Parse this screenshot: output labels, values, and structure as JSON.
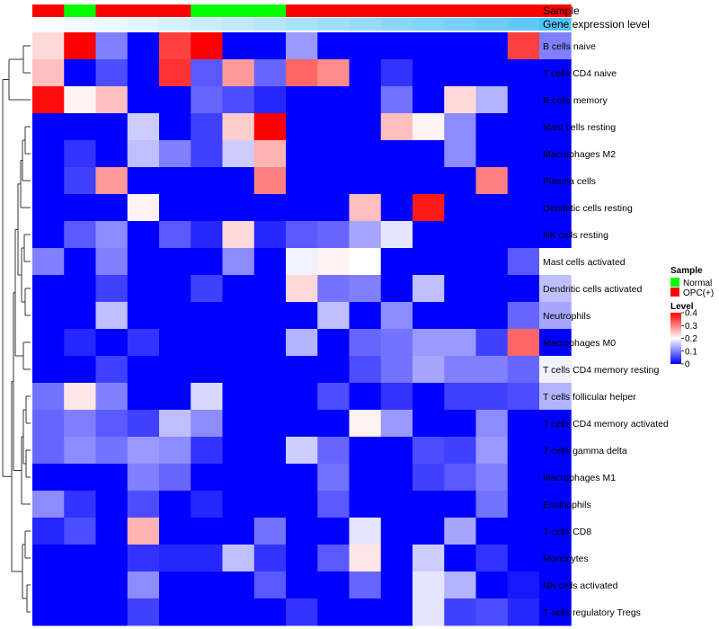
{
  "chart_data": {
    "type": "heatmap",
    "annotation_labels": {
      "sample": "Sample",
      "gene_expression": "Gene expression level"
    },
    "columns": 17,
    "sample_groups": [
      "OPC(+)",
      "Normal",
      "OPC(+)",
      "OPC(+)",
      "OPC(+)",
      "Normal",
      "Normal",
      "Normal",
      "OPC(+)",
      "OPC(+)",
      "OPC(+)",
      "OPC(+)",
      "OPC(+)",
      "OPC(+)",
      "OPC(+)",
      "OPC(+)",
      "OPC(+)"
    ],
    "gene_expression_level": [
      0.0,
      0.06,
      0.12,
      0.18,
      0.24,
      0.3,
      0.36,
      0.42,
      0.48,
      0.54,
      0.6,
      0.66,
      0.72,
      0.78,
      0.84,
      0.9,
      1.0
    ],
    "rows": [
      "B cells naive",
      "T cells CD4 naive",
      "B cells memory",
      "Mast cells resting",
      "Macrophages M2",
      "Plasma cells",
      "Dendritic cells resting",
      "NK cells resting",
      "Mast cells activated",
      "Dendritic cells activated",
      "Neutrophils",
      "Macrophages M0",
      "T cells CD4 memory resting",
      "T cells follicular helper",
      "T cells CD4 memory activated",
      "T cells gamma delta",
      "Macrophages M1",
      "Eosinophils",
      "T cells CD8",
      "Monocytes",
      "NK cells activated",
      "T cells regulatory  Tregs"
    ],
    "values": [
      [
        0.23,
        0.4,
        0.1,
        0,
        0.35,
        0.4,
        0,
        0,
        0.12,
        0,
        0,
        0,
        0,
        0,
        0,
        0.35,
        0.1
      ],
      [
        0.25,
        0,
        0.06,
        0,
        0.36,
        0.07,
        0.28,
        0.08,
        0.32,
        0.29,
        0,
        0.04,
        0,
        0,
        0,
        0,
        0
      ],
      [
        0.39,
        0.21,
        0.25,
        0,
        0,
        0.08,
        0.06,
        0.03,
        0,
        0,
        0,
        0.09,
        0,
        0.23,
        0.14,
        0,
        0
      ],
      [
        0,
        0,
        0,
        0.16,
        0,
        0.05,
        0.24,
        0.4,
        0,
        0,
        0,
        0.25,
        0.21,
        0.11,
        0,
        0,
        0
      ],
      [
        0,
        0.04,
        0,
        0.15,
        0.1,
        0.05,
        0.16,
        0.26,
        0,
        0,
        0,
        0,
        0,
        0.11,
        0,
        0,
        0
      ],
      [
        0,
        0.05,
        0.28,
        0,
        0,
        0,
        0,
        0.3,
        0,
        0,
        0,
        0,
        0,
        0,
        0.3,
        0,
        0
      ],
      [
        0,
        0,
        0,
        0.21,
        0,
        0,
        0,
        0,
        0,
        0,
        0.25,
        0,
        0.38,
        0,
        0,
        0,
        0
      ],
      [
        0,
        0.07,
        0.11,
        0,
        0.07,
        0.03,
        0.23,
        0.03,
        0.07,
        0.08,
        0.13,
        0.18,
        0,
        0,
        0,
        0,
        0
      ],
      [
        0.1,
        0,
        0.1,
        0,
        0,
        0,
        0.11,
        0,
        0.19,
        0.21,
        0.2,
        0,
        0,
        0,
        0,
        0.07,
        0.2
      ],
      [
        0,
        0,
        0.05,
        0,
        0,
        0.05,
        0,
        0,
        0.23,
        0.09,
        0.1,
        0,
        0.15,
        0,
        0,
        0,
        0.15
      ],
      [
        0,
        0,
        0.15,
        0,
        0,
        0,
        0,
        0,
        0,
        0.15,
        0,
        0.11,
        0,
        0,
        0,
        0.08,
        0.13
      ],
      [
        0,
        0.03,
        0,
        0.04,
        0,
        0,
        0,
        0,
        0.14,
        0,
        0.08,
        0.09,
        0.12,
        0.12,
        0.05,
        0.32,
        0
      ],
      [
        0,
        0,
        0.05,
        0,
        0,
        0,
        0,
        0,
        0,
        0,
        0.06,
        0.09,
        0.13,
        0.1,
        0.1,
        0.08,
        0.19
      ],
      [
        0.09,
        0.22,
        0.1,
        0,
        0,
        0.17,
        0,
        0,
        0,
        0.06,
        0,
        0.04,
        0,
        0.05,
        0.05,
        0.06,
        0.14
      ],
      [
        0.08,
        0.1,
        0.07,
        0.05,
        0.15,
        0.11,
        0,
        0,
        0,
        0,
        0.21,
        0.12,
        0,
        0,
        0.11,
        0,
        0
      ],
      [
        0.08,
        0.11,
        0.09,
        0.12,
        0.11,
        0.04,
        0,
        0,
        0.16,
        0.08,
        0,
        0,
        0.06,
        0.05,
        0.12,
        0,
        0
      ],
      [
        0,
        0,
        0,
        0.1,
        0.08,
        0,
        0,
        0,
        0,
        0.09,
        0,
        0,
        0.05,
        0.07,
        0.1,
        0,
        0
      ],
      [
        0.11,
        0.04,
        0,
        0.06,
        0,
        0.03,
        0,
        0,
        0,
        0.07,
        0,
        0,
        0,
        0,
        0.09,
        0,
        0
      ],
      [
        0.03,
        0.06,
        0,
        0.26,
        0,
        0,
        0,
        0.09,
        0,
        0,
        0.18,
        0,
        0,
        0.13,
        0,
        0,
        0
      ],
      [
        0,
        0,
        0,
        0.04,
        0.03,
        0.03,
        0.15,
        0.04,
        0,
        0.07,
        0.22,
        0,
        0.16,
        0,
        0.04,
        0,
        0
      ],
      [
        0,
        0,
        0,
        0.11,
        0,
        0,
        0,
        0.07,
        0,
        0,
        0.08,
        0,
        0.18,
        0.14,
        0,
        0.02,
        0
      ],
      [
        0,
        0,
        0,
        0.05,
        0,
        0,
        0,
        0,
        0.04,
        0,
        0,
        0,
        0.18,
        0.05,
        0.06,
        0.03,
        0
      ]
    ],
    "legend": {
      "sample_title": "Sample",
      "sample_entries": [
        {
          "name": "Normal",
          "color": "#00ff00"
        },
        {
          "name": "OPC(+)",
          "color": "#ff0000"
        }
      ],
      "level_title": "Level",
      "level_ticks": [
        0.4,
        0.3,
        0.2,
        0.1,
        0
      ],
      "level_range": [
        0,
        0.4
      ]
    },
    "colors": {
      "low": "#0000ff",
      "mid": "#ffffff",
      "high": "#ff0000",
      "normal": "#00ff00",
      "opc": "#ff0000",
      "gene_low": "#ffffff",
      "gene_high": "#4fc3f7"
    }
  }
}
